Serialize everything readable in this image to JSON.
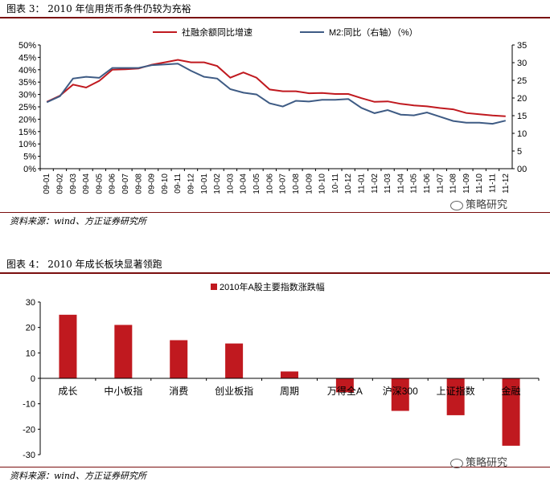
{
  "fig3": {
    "caption": "图表 3： 2010 年信用货币条件仍较为充裕",
    "source": "资料来源：wind、方正证券研究所",
    "watermark": "策略研究"
  },
  "fig4": {
    "caption": "图表 4： 2010 年成长板块显著领跑",
    "source": "资料来源：wind、方正证券研究所",
    "watermark": "策略研究"
  },
  "colors": {
    "red": "#c0191f",
    "blue": "#3e5b84",
    "rule": "#7a0e0e"
  },
  "chart_data": [
    {
      "type": "line",
      "categories": [
        "09-01",
        "09-02",
        "09-03",
        "09-04",
        "09-05",
        "09-06",
        "09-07",
        "09-08",
        "09-09",
        "09-10",
        "09-11",
        "09-12",
        "10-01",
        "10-02",
        "10-03",
        "10-04",
        "10-05",
        "10-06",
        "10-07",
        "10-08",
        "10-09",
        "10-10",
        "10-11",
        "10-12",
        "11-01",
        "11-02",
        "11-03",
        "11-04",
        "11-05",
        "11-06",
        "11-07",
        "11-08",
        "11-09",
        "11-10",
        "11-11",
        "11-12"
      ],
      "series": [
        {
          "name": "社融余额同比增速",
          "axis": "left",
          "values": [
            27,
            29.5,
            34,
            32.8,
            35.5,
            40,
            40.2,
            40.5,
            42,
            43,
            44,
            43,
            43,
            41.5,
            36.8,
            38.9,
            36.8,
            32,
            31.3,
            31.3,
            30.5,
            30.6,
            30.2,
            30.2,
            28.5,
            27,
            27.2,
            26.2,
            25.6,
            25.2,
            24.5,
            24,
            22.5,
            22,
            21.5,
            21.2
          ]
        },
        {
          "name": "M2:同比（右轴）（%）",
          "axis": "right",
          "values": [
            18.8,
            20.5,
            25.5,
            26,
            25.7,
            28.5,
            28.5,
            28.5,
            29.3,
            29.5,
            29.7,
            27.7,
            26,
            25.5,
            22.5,
            21.5,
            21,
            18.5,
            17.6,
            19.2,
            19,
            19.5,
            19.5,
            19.7,
            17.2,
            15.7,
            16.6,
            15.3,
            15.1,
            15.9,
            14.7,
            13.5,
            13,
            13,
            12.7,
            13.6
          ]
        }
      ],
      "left_axis": {
        "ticks": [
          "0%",
          "5%",
          "10%",
          "15%",
          "20%",
          "25%",
          "30%",
          "35%",
          "40%",
          "45%",
          "50%"
        ],
        "ylim": [
          0,
          50
        ]
      },
      "right_axis": {
        "ticks": [
          "00",
          "5",
          "10",
          "15",
          "20",
          "25",
          "30",
          "35"
        ],
        "ylim": [
          0,
          35
        ]
      },
      "legend_position": "top"
    },
    {
      "type": "bar",
      "title": "2010年A股主要指数涨跌幅",
      "categories": [
        "成长",
        "中小板指",
        "消费",
        "创业板指",
        "周期",
        "万得全A",
        "沪深300",
        "上证指数",
        "金融"
      ],
      "values": [
        25,
        21,
        15,
        13.7,
        2.7,
        -5.5,
        -12.8,
        -14.5,
        -26.5
      ],
      "yticks": [
        "30",
        "20",
        "10",
        "0",
        "-10",
        "-20",
        "-30"
      ],
      "ylim": [
        -30,
        30
      ]
    }
  ]
}
